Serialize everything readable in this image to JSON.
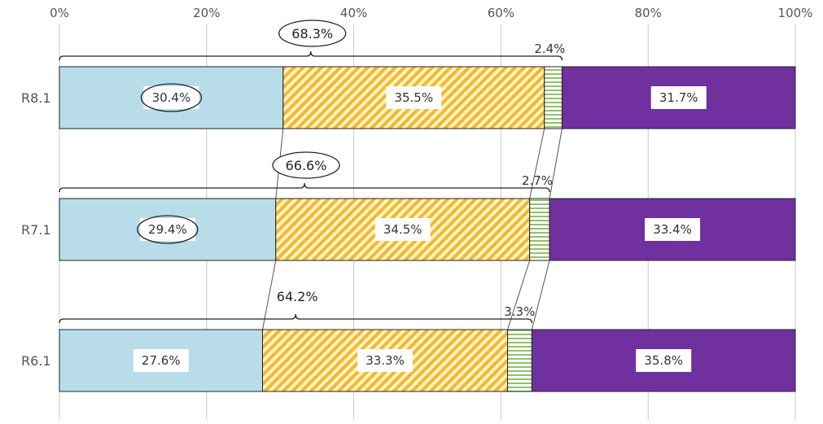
{
  "chart_data": {
    "type": "bar",
    "orientation": "horizontal",
    "stacked": true,
    "xlim": [
      0,
      100
    ],
    "x_ticks": [
      "0%",
      "20%",
      "40%",
      "60%",
      "80%",
      "100%"
    ],
    "grid": true,
    "categories": [
      "R8.1",
      "R7.1",
      "R6.1"
    ],
    "series": [
      {
        "values": [
          30.4,
          29.4,
          27.6
        ],
        "labels": [
          "30.4%",
          "29.4%",
          "27.6%"
        ],
        "color": "#b8dde8",
        "pattern": "solid"
      },
      {
        "values": [
          35.5,
          34.5,
          33.3
        ],
        "labels": [
          "35.5%",
          "34.5%",
          "33.3%"
        ],
        "color": "#f2b830",
        "pattern": "diagonal"
      },
      {
        "values": [
          2.4,
          2.7,
          3.3
        ],
        "labels": [
          "2.4%",
          "2.7%",
          "3.3%"
        ],
        "color": "#8fc36a",
        "pattern": "horizontal"
      },
      {
        "values": [
          31.7,
          33.4,
          35.8
        ],
        "labels": [
          "31.7%",
          "33.4%",
          "35.8%"
        ],
        "color": "#7030a0",
        "pattern": "solid"
      }
    ],
    "brace_annotations": [
      {
        "category": "R8.1",
        "value": 68.3,
        "label": "68.3%",
        "circled": true
      },
      {
        "category": "R7.1",
        "value": 66.6,
        "label": "66.6%",
        "circled": true
      },
      {
        "category": "R6.1",
        "value": 64.2,
        "label": "64.2%",
        "circled": false
      }
    ],
    "circled_segments": [
      "R8.1",
      "R7.1"
    ]
  }
}
